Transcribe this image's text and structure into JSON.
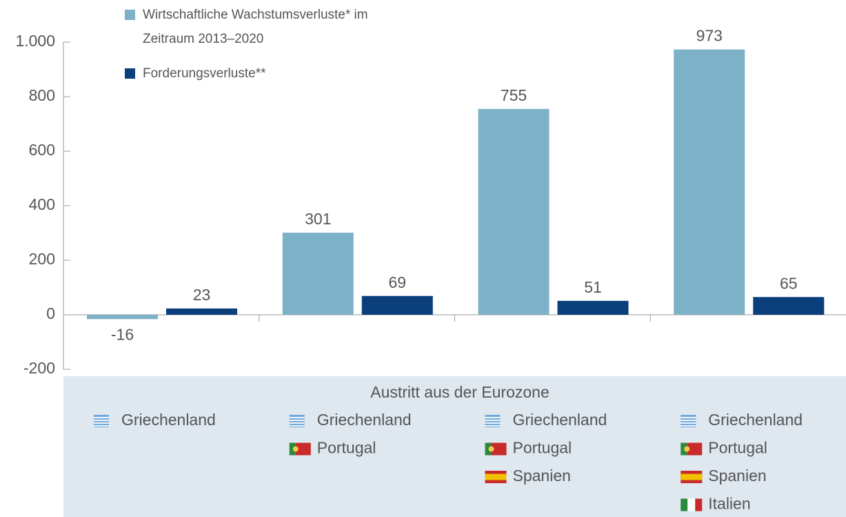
{
  "chart_data": {
    "type": "bar",
    "x_label": "Austritt aus der Eurozone",
    "categories": [
      [
        "Griechenland"
      ],
      [
        "Griechenland",
        "Portugal"
      ],
      [
        "Griechenland",
        "Portugal",
        "Spanien"
      ],
      [
        "Griechenland",
        "Portugal",
        "Spanien",
        "Italien"
      ]
    ],
    "series": [
      {
        "name": "Wirtschaftliche Wachstumsverluste* im Zeitraum 2013–2020",
        "color": "#7db1c8",
        "values": [
          -16,
          301,
          755,
          973
        ]
      },
      {
        "name": "Forderungsverluste**",
        "color": "#0b3f7b",
        "values": [
          23,
          69,
          51,
          65
        ]
      }
    ],
    "ylim": [
      -200,
      1000
    ],
    "yticks": [
      -200,
      0,
      200,
      400,
      600,
      800,
      {
        "value": 1000,
        "label": "1.000"
      }
    ],
    "legend": "top-left"
  }
}
